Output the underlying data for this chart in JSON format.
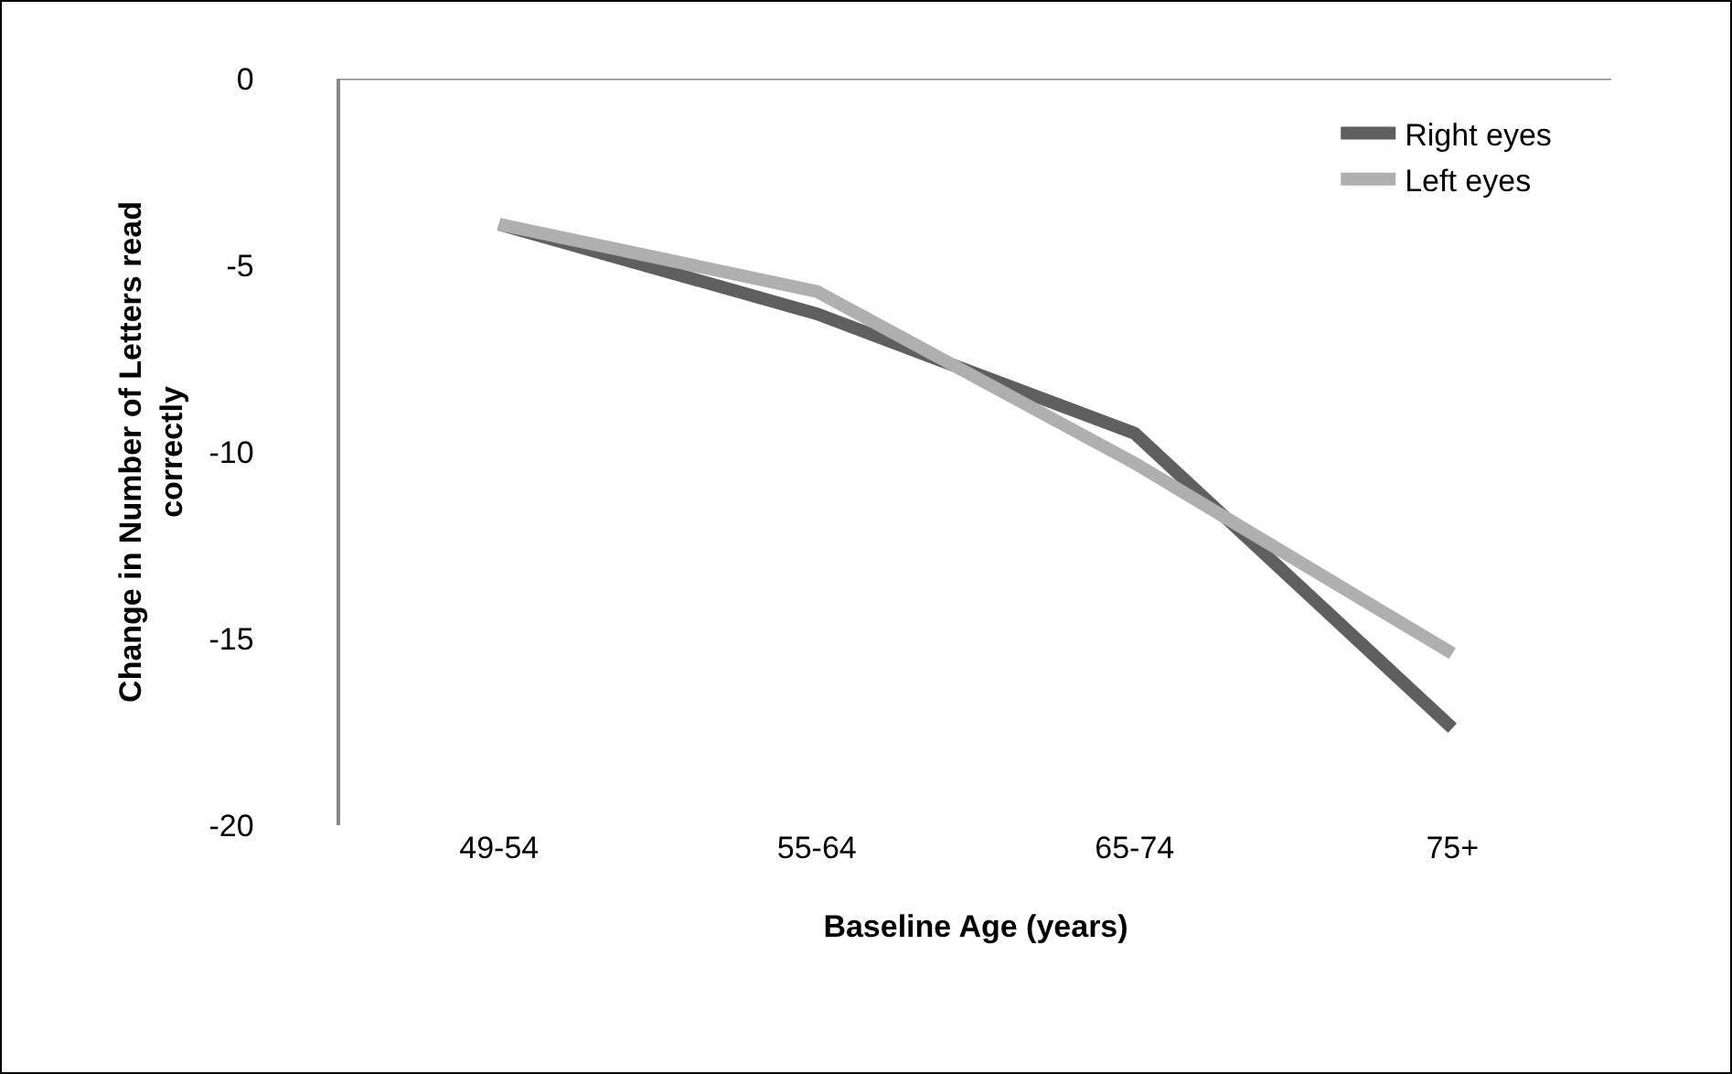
{
  "chart_data": {
    "type": "line",
    "xlabel": "Baseline Age (years)",
    "ylabel": "Change in Number of Letters read correctly",
    "categories": [
      "49-54",
      "55-64",
      "65-74",
      "75+"
    ],
    "series": [
      {
        "name": "Right eyes",
        "color": "#5f5f5f",
        "values": [
          -3.9,
          -6.3,
          -9.5,
          -17.4
        ]
      },
      {
        "name": "Left eyes",
        "color": "#afafaf",
        "values": [
          -3.9,
          -5.7,
          -10.3,
          -15.4
        ]
      }
    ],
    "ylim": [
      -20,
      0
    ],
    "yticks": [
      -20,
      -15,
      -10,
      -5,
      0
    ],
    "grid": false,
    "legend": "top right",
    "marker": "none",
    "line_style": "solid"
  }
}
